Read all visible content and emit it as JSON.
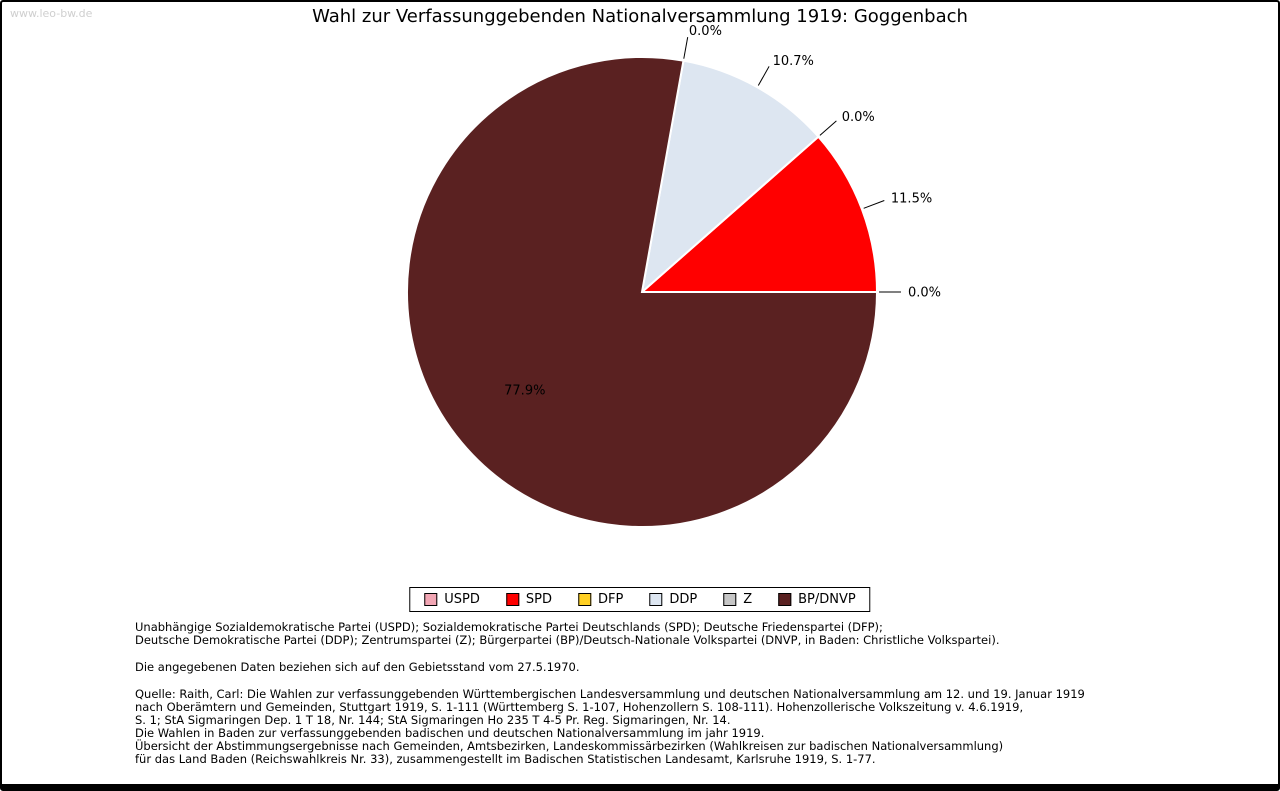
{
  "watermark": "www.leo-bw.de",
  "chart_data": {
    "type": "pie",
    "title": "Wahl zur Verfassunggebenden Nationalversammlung 1919: Goggenbach",
    "start_angle_deg": 0,
    "direction": "counterclockwise",
    "inside_label_threshold": 50,
    "legend_position": "bottom",
    "series": [
      {
        "name": "USPD",
        "value": 0.0,
        "label": "0.0%",
        "color": "#f2a6b4"
      },
      {
        "name": "SPD",
        "value": 11.5,
        "label": "11.5%",
        "color": "#ff0000"
      },
      {
        "name": "DFP",
        "value": 0.0,
        "label": "0.0%",
        "color": "#ffd024"
      },
      {
        "name": "DDP",
        "value": 10.7,
        "label": "10.7%",
        "color": "#dde6f1"
      },
      {
        "name": "Z",
        "value": 0.0,
        "label": "0.0%",
        "color": "#c6c6c6"
      },
      {
        "name": "BP/DNVP",
        "value": 77.9,
        "label": "77.9%",
        "color": "#5a2121"
      }
    ]
  },
  "notes": {
    "party_abbrev": [
      "Unabhängige Sozialdemokratische Partei (USPD); Sozialdemokratische Partei Deutschlands (SPD); Deutsche Friedenspartei (DFP);",
      "Deutsche Demokratische Partei (DDP); Zentrumspartei (Z); Bürgerpartei (BP)/Deutsch-Nationale Volkspartei (DNVP, in Baden: Christliche Volkspartei)."
    ],
    "gebietsstand": "Die angegebenen Daten beziehen sich auf den Gebietsstand vom 27.5.1970.",
    "quelle": [
      "Quelle: Raith, Carl: Die Wahlen zur verfassunggebenden Württembergischen Landesversammlung und deutschen Nationalversammlung am 12. und 19. Januar 1919",
      "nach Oberämtern und Gemeinden, Stuttgart 1919, S. 1-111 (Württemberg S. 1-107, Hohenzollern S. 108-111). Hohenzollerische Volkszeitung v. 4.6.1919,",
      "S. 1; StA Sigmaringen Dep. 1 T 18, Nr. 144; StA Sigmaringen Ho 235 T 4-5 Pr. Reg. Sigmaringen, Nr. 14.",
      "Die Wahlen in Baden zur verfassunggebenden badischen und deutschen Nationalversammlung im jahr 1919.",
      "Übersicht der Abstimmungsergebnisse nach Gemeinden, Amtsbezirken, Landeskommissärbezirken (Wahlkreisen zur badischen Nationalversammlung)",
      "für das Land Baden (Reichswahlkreis Nr. 33), zusammengestellt im Badischen Statistischen Landesamt, Karlsruhe 1919, S. 1-77."
    ]
  }
}
